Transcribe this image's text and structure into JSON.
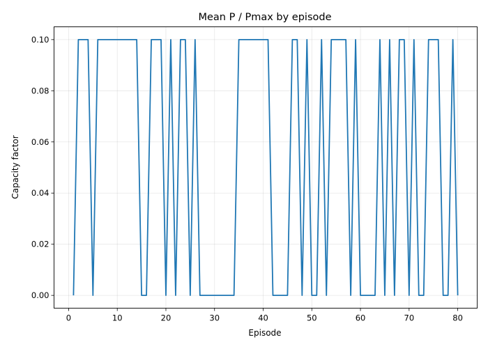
{
  "chart_data": {
    "type": "line",
    "title": "Mean P / Pmax by episode",
    "xlabel": "Episode",
    "ylabel": "Capacity factor",
    "xlim": [
      -3,
      84
    ],
    "ylim": [
      -0.005,
      0.105
    ],
    "xticks": [
      0,
      10,
      20,
      30,
      40,
      50,
      60,
      70,
      80
    ],
    "xtick_labels": [
      "0",
      "10",
      "20",
      "30",
      "40",
      "50",
      "60",
      "70",
      "80"
    ],
    "yticks": [
      0.0,
      0.02,
      0.04,
      0.06,
      0.08,
      0.1
    ],
    "ytick_labels": [
      "0.00",
      "0.02",
      "0.04",
      "0.06",
      "0.08",
      "0.10"
    ],
    "grid": true,
    "series": [
      {
        "color": "#1f77b4",
        "x": [
          1,
          2,
          3,
          4,
          5,
          6,
          7,
          8,
          9,
          10,
          11,
          12,
          13,
          14,
          15,
          16,
          17,
          18,
          19,
          20,
          21,
          22,
          23,
          24,
          25,
          26,
          27,
          28,
          29,
          30,
          31,
          32,
          33,
          34,
          35,
          36,
          37,
          38,
          39,
          40,
          41,
          42,
          43,
          44,
          45,
          46,
          47,
          48,
          49,
          50,
          51,
          52,
          53,
          54,
          55,
          56,
          57,
          58,
          59,
          60,
          61,
          62,
          63,
          64,
          65,
          66,
          67,
          68,
          69,
          70,
          71,
          72,
          73,
          74,
          75,
          76,
          77,
          78,
          79,
          80
        ],
        "values": [
          0,
          0.1,
          0.1,
          0.1,
          0,
          0.1,
          0.1,
          0.1,
          0.1,
          0.1,
          0.1,
          0.1,
          0.1,
          0.1,
          0,
          0,
          0.1,
          0.1,
          0.1,
          0,
          0.1,
          0,
          0.1,
          0.1,
          0,
          0.1,
          0,
          0,
          0,
          0,
          0,
          0,
          0,
          0,
          0.1,
          0.1,
          0.1,
          0.1,
          0.1,
          0.1,
          0.1,
          0,
          0,
          0,
          0,
          0.1,
          0.1,
          0,
          0.1,
          0,
          0,
          0.1,
          0,
          0.1,
          0.1,
          0.1,
          0.1,
          0,
          0.1,
          0,
          0,
          0,
          0,
          0.1,
          0,
          0.1,
          0,
          0.1,
          0.1,
          0,
          0.1,
          0,
          0,
          0.1,
          0.1,
          0.1,
          0,
          0,
          0.1,
          0
        ]
      }
    ]
  }
}
